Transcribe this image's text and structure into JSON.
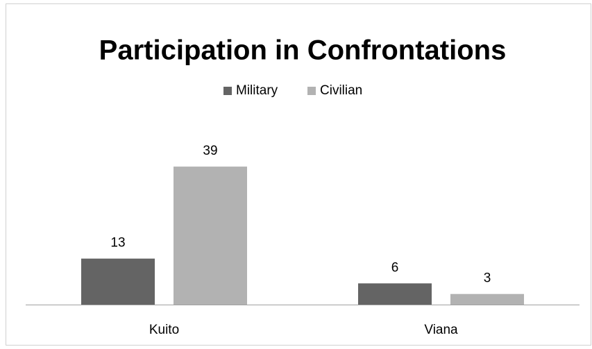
{
  "chart_data": {
    "type": "bar",
    "title": "Participation in Confrontations",
    "categories": [
      "Kuito",
      "Viana"
    ],
    "series": [
      {
        "name": "Military",
        "color": "#646464",
        "values": [
          13,
          6
        ]
      },
      {
        "name": "Civilian",
        "color": "#b2b2b2",
        "values": [
          39,
          3
        ]
      }
    ],
    "ylim": [
      0,
      45
    ],
    "legend": "top"
  }
}
